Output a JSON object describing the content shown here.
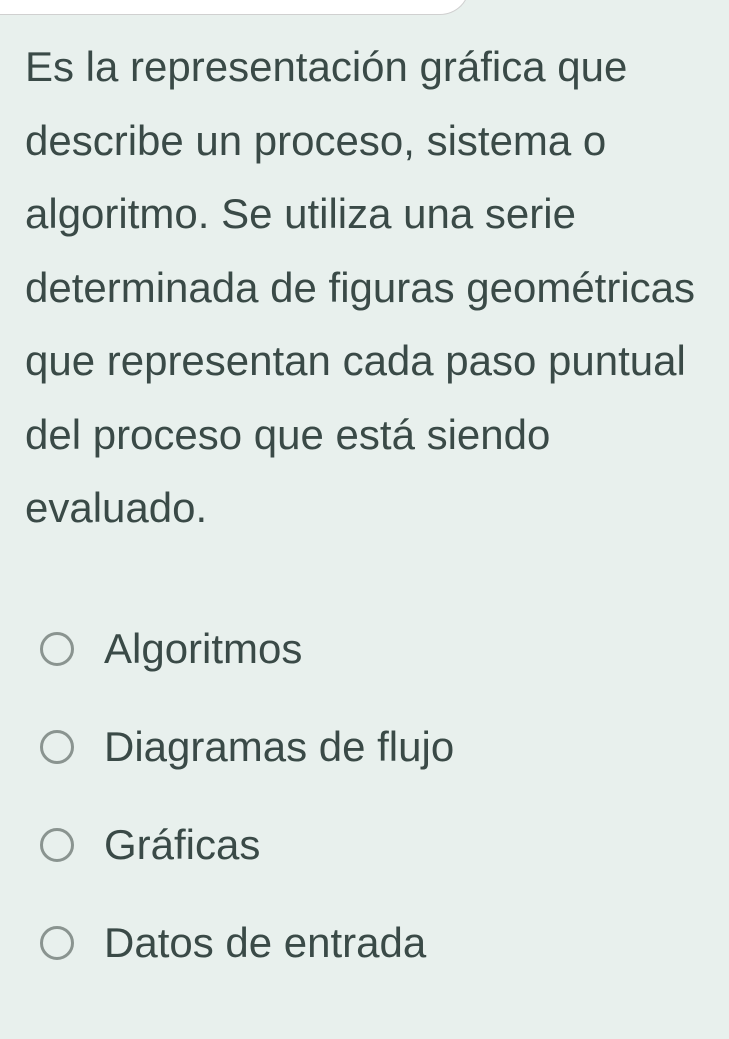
{
  "question": {
    "text": "Es la representación gráfica que describe un proceso, sistema o algoritmo. Se utiliza una serie determinada de figuras geométricas que representan cada paso puntual del proceso que está siendo evaluado."
  },
  "options": [
    {
      "label": "Algoritmos",
      "selected": false
    },
    {
      "label": "Diagramas de flujo",
      "selected": false
    },
    {
      "label": "Gráficas",
      "selected": false
    },
    {
      "label": "Datos de entrada",
      "selected": false
    }
  ],
  "colors": {
    "background": "#e8f0ed",
    "text": "#3a4a47",
    "radio_border": "#8a9490",
    "tab_bg": "#ffffff",
    "tab_border": "#d0d0d0"
  },
  "typography": {
    "question_fontsize": 42,
    "option_fontsize": 42,
    "line_height": 1.75
  }
}
